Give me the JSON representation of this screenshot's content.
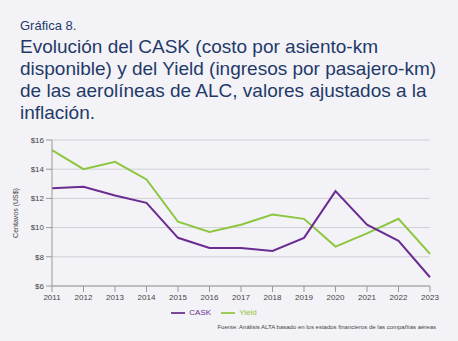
{
  "chart_data": {
    "type": "line",
    "subtitle": "Gráfica 8.",
    "title": "Evolución del CASK (costo por asiento-km disponible) y del Yield (ingresos por pasajero-km) de las aerolíneas de ALC, valores ajustados a la inflación.",
    "y_label": "Centavos (US$)",
    "categories": [
      "2011",
      "2012",
      "2013",
      "2014",
      "2015",
      "2016",
      "2017",
      "2018",
      "2019",
      "2020",
      "2021",
      "2022",
      "2023"
    ],
    "series": [
      {
        "name": "Yield",
        "color": "#8dc63f",
        "values": [
          15.3,
          14.0,
          14.5,
          13.3,
          10.4,
          9.7,
          10.2,
          10.9,
          10.6,
          8.7,
          9.6,
          10.6,
          8.2
        ]
      },
      {
        "name": "CASK",
        "color": "#6b2c91",
        "values": [
          12.7,
          12.8,
          12.2,
          11.7,
          9.3,
          8.6,
          8.6,
          8.4,
          9.3,
          12.5,
          10.2,
          9.1,
          6.6
        ]
      }
    ],
    "ylim": [
      6,
      16
    ],
    "yticks": [
      {
        "value": 6,
        "label": "$6"
      },
      {
        "value": 8,
        "label": "$8"
      },
      {
        "value": 10,
        "label": "$10"
      },
      {
        "value": 12,
        "label": "$12"
      },
      {
        "value": 14,
        "label": "$14"
      },
      {
        "value": 16,
        "label": "$16"
      }
    ],
    "grid": true,
    "legend": "bottom",
    "annotations": [
      "Fuente: Análisis ALTA basado en los estados financieros de las compañías aéreas"
    ]
  }
}
